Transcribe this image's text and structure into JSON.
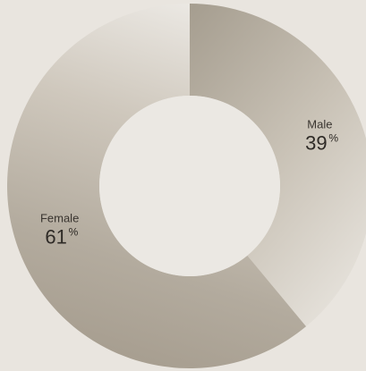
{
  "chart_data": {
    "type": "pie",
    "donut": true,
    "slices": [
      {
        "label": "Male",
        "value": 39,
        "display": "39",
        "unit": "%"
      },
      {
        "label": "Female",
        "value": 61,
        "display": "61",
        "unit": "%"
      }
    ],
    "colors": {
      "background": "#e9e5df",
      "slice_dark": "#a39b8d",
      "slice_light": "#e3dfd8",
      "hole": "#ebe8e3"
    },
    "start_angle": "top",
    "direction": "clockwise",
    "legend": "none"
  }
}
